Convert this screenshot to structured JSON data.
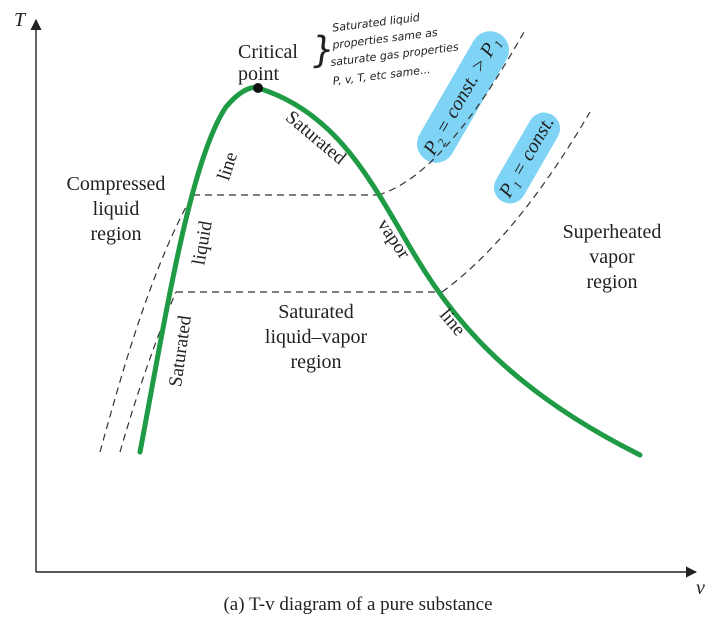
{
  "axes": {
    "y_label": "T",
    "x_label": "v"
  },
  "critical_point": {
    "line1": "Critical",
    "line2": "point"
  },
  "note": {
    "brace": "}",
    "lines": [
      "Saturated liquid",
      "properties same as",
      "saturate gas properties",
      "P, v, T, etc same..."
    ]
  },
  "regions": {
    "compressed": [
      "Compressed",
      "liquid",
      "region"
    ],
    "superheated": [
      "Superheated",
      "vapor",
      "region"
    ],
    "mixture": [
      "Saturated",
      "liquid–vapor",
      "region"
    ]
  },
  "curve_labels": {
    "liquid_line": [
      "Saturated",
      "liquid",
      "line"
    ],
    "vapor_line": [
      "Saturated",
      "vapor",
      "line"
    ]
  },
  "isobars": {
    "p2": "P₂ = const. > P₁",
    "p1": "P₁ = const."
  },
  "caption": "(a) T-v diagram of a pure substance",
  "colors": {
    "saturation_dome": "#1f9a45",
    "highlight": "#7fd3f5",
    "dashed": "#333333"
  }
}
